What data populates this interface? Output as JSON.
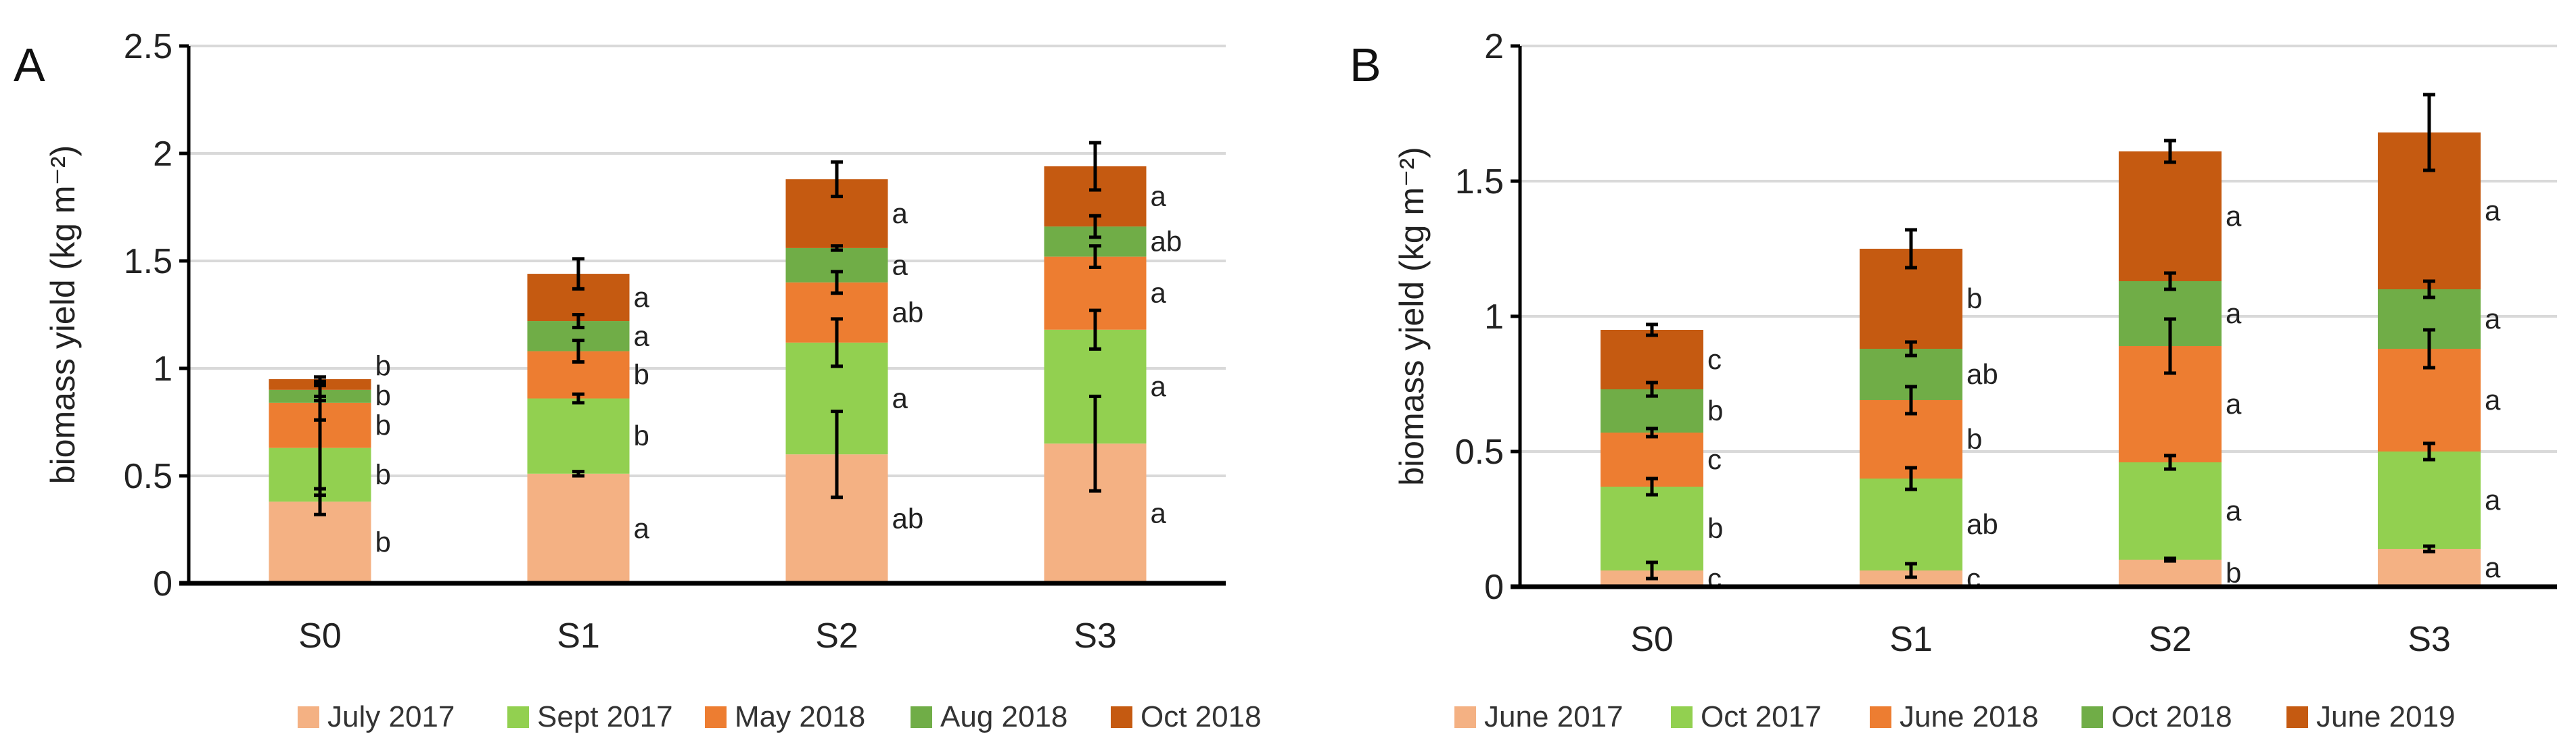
{
  "chart_data": [
    {
      "type": "bar",
      "stacked": true,
      "panel_label": "A",
      "ylabel": "biomass yield (kg m⁻²)",
      "ylim": [
        0,
        2.5
      ],
      "yticks": [
        "0",
        "0.5",
        "1",
        "1.5",
        "2",
        "2.5"
      ],
      "ytick_values": [
        0,
        0.5,
        1,
        1.5,
        2,
        2.5
      ],
      "grid": true,
      "legend_position": "bottom",
      "categories": [
        "S0",
        "S1",
        "S2",
        "S3"
      ],
      "series": [
        {
          "name": "July 2017",
          "color": "#F4B183",
          "values": [
            0.38,
            0.51,
            0.6,
            0.65
          ],
          "errors": [
            0.06,
            0.01,
            0.2,
            0.22
          ],
          "letters": [
            "b",
            "a",
            "ab",
            "a"
          ]
        },
        {
          "name": "Sept 2017",
          "color": "#92D050",
          "values": [
            0.25,
            0.35,
            0.52,
            0.53
          ],
          "errors": [
            0.22,
            0.02,
            0.11,
            0.09
          ],
          "letters": [
            "b",
            "b",
            "a",
            "a"
          ]
        },
        {
          "name": "May 2018",
          "color": "#ED7D31",
          "values": [
            0.21,
            0.22,
            0.28,
            0.34
          ],
          "errors": [
            0.08,
            0.05,
            0.05,
            0.05
          ],
          "letters": [
            "b",
            "b",
            "ab",
            "a"
          ]
        },
        {
          "name": "Aug 2018",
          "color": "#70AD47",
          "values": [
            0.06,
            0.14,
            0.16,
            0.14
          ],
          "errors": [
            0.03,
            0.03,
            0.01,
            0.05
          ],
          "letters": [
            "b",
            "a",
            "a",
            "ab"
          ]
        },
        {
          "name": "Oct 2018",
          "color": "#C55A11",
          "values": [
            0.05,
            0.22,
            0.32,
            0.28
          ],
          "errors": [
            0.01,
            0.07,
            0.08,
            0.11
          ],
          "letters": [
            "b",
            "a",
            "a",
            "a"
          ]
        }
      ]
    },
    {
      "type": "bar",
      "stacked": true,
      "panel_label": "B",
      "ylabel": "biomass yield (kg m⁻²)",
      "ylim": [
        0,
        2
      ],
      "yticks": [
        "0",
        "0.5",
        "1",
        "1.5",
        "2"
      ],
      "ytick_values": [
        0,
        0.5,
        1,
        1.5,
        2
      ],
      "grid": true,
      "legend_position": "bottom",
      "categories": [
        "S0",
        "S1",
        "S2",
        "S3"
      ],
      "series": [
        {
          "name": "June 2017",
          "color": "#F4B183",
          "values": [
            0.06,
            0.06,
            0.1,
            0.14
          ],
          "errors": [
            0.03,
            0.025,
            0.005,
            0.01
          ],
          "letters": [
            "c",
            "c",
            "b",
            "a"
          ]
        },
        {
          "name": "Oct 2017",
          "color": "#92D050",
          "values": [
            0.31,
            0.34,
            0.36,
            0.36
          ],
          "errors": [
            0.03,
            0.04,
            0.025,
            0.03
          ],
          "letters": [
            "b",
            "ab",
            "a",
            "a"
          ]
        },
        {
          "name": "June 2018",
          "color": "#ED7D31",
          "values": [
            0.2,
            0.29,
            0.43,
            0.38
          ],
          "errors": [
            0.015,
            0.05,
            0.1,
            0.07
          ],
          "letters": [
            "c",
            "b",
            "a",
            "a"
          ]
        },
        {
          "name": "Oct 2018",
          "color": "#70AD47",
          "values": [
            0.16,
            0.19,
            0.24,
            0.22
          ],
          "errors": [
            0.025,
            0.025,
            0.03,
            0.03
          ],
          "letters": [
            "b",
            "ab",
            "a",
            "a"
          ]
        },
        {
          "name": "June 2019",
          "color": "#C55A11",
          "values": [
            0.22,
            0.37,
            0.48,
            0.58
          ],
          "errors": [
            0.02,
            0.07,
            0.04,
            0.14
          ],
          "letters": [
            "c",
            "b",
            "a",
            "a"
          ]
        }
      ]
    }
  ]
}
